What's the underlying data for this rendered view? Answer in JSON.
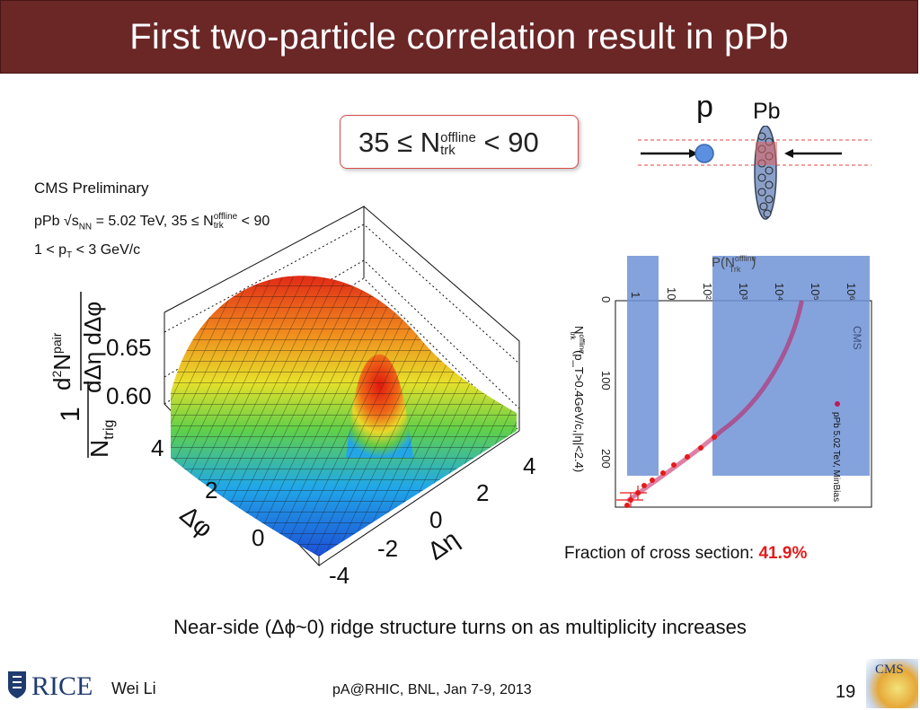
{
  "title": "First two-particle correlation result in pPb",
  "cut_box": {
    "prefix": "35 ≤ N",
    "sup": "offline",
    "sub": "trk",
    "suffix": " < 90"
  },
  "plot_text": {
    "cms": "CMS Preliminary",
    "cond1_a": "pPb √s",
    "cond1_sub": "NN",
    "cond1_b": " = 5.02 TeV, 35 ≤ N",
    "cond1_sup": "offline",
    "cond1_sub2": "trk",
    "cond1_c": " < 90",
    "cond2_a": "1 < p",
    "cond2_sub": "T",
    "cond2_b": " < 3 GeV/c",
    "z_ticks": [
      "0.65",
      "0.60"
    ],
    "dphi_ticks": [
      "4",
      "2",
      "0"
    ],
    "deta_ticks": [
      "4",
      "2",
      "0",
      "-2",
      "-4"
    ],
    "dphi_label": "Δφ",
    "deta_label": "Δη"
  },
  "collision": {
    "p_label": "p",
    "pb_label": "Pb"
  },
  "mult_plot": {
    "top_label": "P(N",
    "top_sup": "offline",
    "top_sub": "Trk",
    "top_end": ")",
    "x_label": "N",
    "x_label_sup": "offline",
    "x_label_sub": "trk",
    "x_label_rest": " (p_T>0.4GeV/c,|η|<2.4)",
    "p_ticks": [
      "0",
      "100",
      "200"
    ],
    "log_ticks": [
      "1",
      "10",
      "10²",
      "10³",
      "10⁴",
      "10⁵",
      "10⁶"
    ],
    "cms_text": "CMS",
    "legend_text": "pPb 5.02 TeV, MinBias"
  },
  "fraction": {
    "label": "Fraction of cross section: ",
    "value": "41.9%"
  },
  "caption": "Near-side (Δϕ~0) ridge structure turns on as multiplicity increases",
  "footer": {
    "institution": "RICE",
    "author": "Wei Li",
    "conference": "pA@RHIC, BNL, Jan 7-9, 2013",
    "page": "19",
    "cms_logo": "CMS"
  },
  "colors": {
    "title_bg": "#6b2626",
    "highlight": "#e41b1b",
    "band": "#6e93d6"
  }
}
